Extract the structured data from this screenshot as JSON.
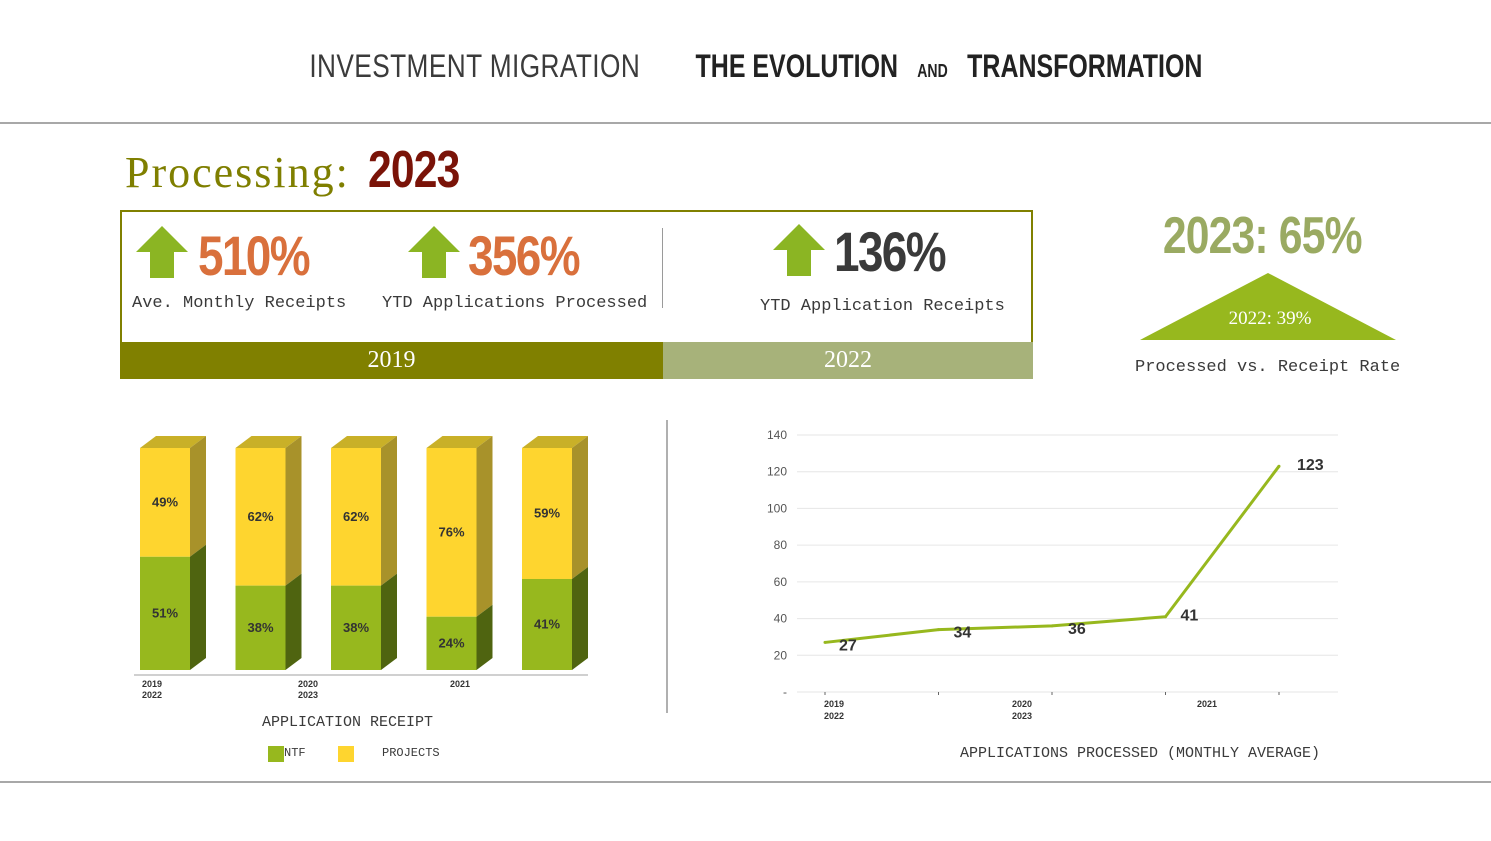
{
  "header": {
    "title_light": "INVESTMENT MIGRATION",
    "title_bold_1": "THE EVOLUTION",
    "title_small": "AND",
    "title_bold_2": "TRANSFORMATION"
  },
  "section": {
    "label": "Processing:",
    "year": "2023"
  },
  "stats": [
    {
      "value": "510%",
      "label": "Ave. Monthly Receipts",
      "color": "#d9703c"
    },
    {
      "value": "356%",
      "label": "YTD Applications Processed",
      "color": "#d9703c"
    },
    {
      "value": "136%",
      "label": "YTD Application Receipts",
      "color": "#3a3a3a"
    }
  ],
  "bands": {
    "left": "2019",
    "right": "2022"
  },
  "rate": {
    "big": "2023: 65%",
    "small": "2022: 39%",
    "caption": "Processed vs. Receipt Rate"
  },
  "colors": {
    "olive": "#808000",
    "light_olive": "#a7b27a",
    "green_arrow": "#8bb523",
    "accent_orange": "#d9703c",
    "ntf": "#97b81e",
    "projects": "#fed52f"
  },
  "chart_data": [
    {
      "type": "bar",
      "stacked": true,
      "title": "APPLICATION RECEIPT",
      "series": [
        {
          "name": "NTF",
          "values": [
            51,
            38,
            38,
            24,
            41
          ],
          "labels": [
            "51%",
            "38%",
            "38%",
            "24%",
            "41%"
          ]
        },
        {
          "name": "PROJECTS",
          "values": [
            49,
            62,
            62,
            76,
            59
          ],
          "labels": [
            "49%",
            "62%",
            "62%",
            "76%",
            "59%"
          ]
        }
      ],
      "x_tick_labels": [
        {
          "top": "2019",
          "bottom": "2022"
        },
        {
          "top": "2020",
          "bottom": "2023"
        },
        {
          "top": "2021",
          "bottom": ""
        }
      ],
      "legend": [
        "NTF",
        "PROJECTS"
      ]
    },
    {
      "type": "line",
      "title": "APPLICATIONS PROCESSED (MONTHLY AVERAGE)",
      "values": [
        27,
        34,
        36,
        41,
        123
      ],
      "labels": [
        "27",
        "34",
        "36",
        "41",
        "123"
      ],
      "ylim": [
        0,
        140
      ],
      "y_ticks": [
        "140",
        "120",
        "100",
        "80",
        "60",
        "40",
        "20",
        "-"
      ],
      "x_tick_labels": [
        {
          "top": "2019",
          "bottom": "2022"
        },
        {
          "top": "2020",
          "bottom": "2023"
        },
        {
          "top": "2021",
          "bottom": ""
        }
      ],
      "grid": true
    }
  ]
}
